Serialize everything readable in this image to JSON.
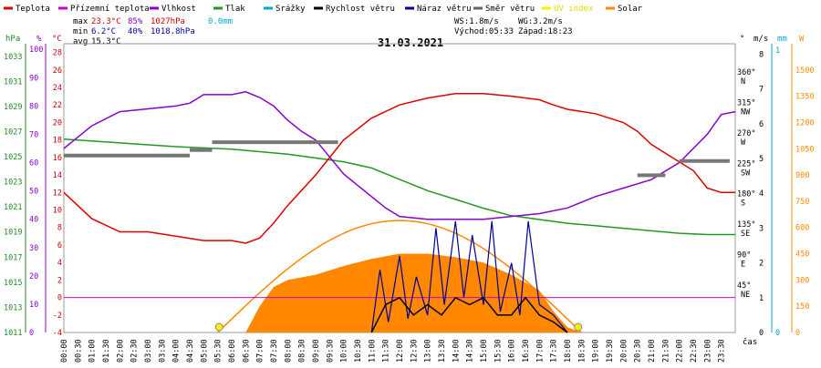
{
  "chart_data": {
    "type": "line",
    "title": "31.03.2021",
    "legend": [
      {
        "name": "Teplota",
        "color": "#dd0000"
      },
      {
        "name": "Přízemní teplota",
        "color": "#cc00cc"
      },
      {
        "name": "Vlhkost",
        "color": "#8800cc"
      },
      {
        "name": "Tlak",
        "color": "#229922"
      },
      {
        "name": "Srážky",
        "color": "#00aacc"
      },
      {
        "name": "Rychlost větru",
        "color": "#000000"
      },
      {
        "name": "Náraz větru",
        "color": "#000099"
      },
      {
        "name": "Směr větru",
        "color": "#666666"
      },
      {
        "name": "UV index",
        "color": "#ffee00"
      },
      {
        "name": "Solar",
        "color": "#ff8800"
      }
    ],
    "stats": {
      "max_label": "max",
      "max_temp": "23.3°C",
      "max_hum": "85%",
      "max_press": "1027hPa",
      "max_rain": "0.0mm",
      "min_label": "min",
      "min_temp": "6.2°C",
      "min_hum": "40%",
      "min_press": "1018.8hPa",
      "avg_label": "avg",
      "avg_temp": "15.3°C",
      "ws": "WS:1.8m/s",
      "wg": "WG:3.2m/s",
      "sunrise": "Východ:05:33",
      "sunset": "Západ:18:23"
    },
    "axes": {
      "hpa_unit": "hPa",
      "pct_unit": "%",
      "c_unit": "°C",
      "ms_unit": "m/s",
      "dir_unit": "°",
      "mm_unit": "mm",
      "w_unit": "W",
      "time_label": "čas",
      "hpa_ticks": [
        "1033",
        "1031",
        "1029",
        "1027",
        "1025",
        "1023",
        "1021",
        "1019",
        "1017",
        "1015",
        "1013",
        "1011"
      ],
      "pct_ticks": [
        "100",
        "90",
        "80",
        "70",
        "60",
        "50",
        "40",
        "30",
        "20",
        "10",
        "0"
      ],
      "c_ticks": [
        "28",
        "26",
        "24",
        "22",
        "20",
        "18",
        "16",
        "14",
        "12",
        "10",
        "8",
        "6",
        "4",
        "2",
        "0",
        "-2",
        "-4"
      ],
      "ms_ticks": [
        "8",
        "7",
        "6",
        "5",
        "4",
        "3",
        "2",
        "1",
        "0"
      ],
      "dir_ticks": [
        "360°",
        "315°",
        "270°",
        "225°",
        "180°",
        "135°",
        "90°",
        "45°"
      ],
      "dir_names": [
        "N",
        "NW",
        "W",
        "SW",
        "S",
        "SE",
        "E",
        "NE"
      ],
      "mm_ticks": [
        "1",
        "0"
      ],
      "w_ticks": [
        "1500",
        "1350",
        "1200",
        "1050",
        "900",
        "750",
        "600",
        "450",
        "300",
        "150",
        "0"
      ],
      "time_ticks": [
        "00:00",
        "00:30",
        "01:00",
        "01:30",
        "02:00",
        "02:30",
        "03:00",
        "03:30",
        "04:00",
        "04:30",
        "05:00",
        "05:30",
        "06:00",
        "06:30",
        "07:00",
        "07:30",
        "08:00",
        "08:30",
        "09:00",
        "09:30",
        "10:00",
        "10:30",
        "11:00",
        "11:30",
        "12:00",
        "12:30",
        "13:00",
        "13:30",
        "14:00",
        "14:30",
        "15:00",
        "15:30",
        "16:00",
        "16:30",
        "17:00",
        "17:30",
        "18:00",
        "18:30",
        "19:00",
        "19:30",
        "20:00",
        "20:30",
        "21:00",
        "21:30",
        "22:00",
        "22:30",
        "23:00",
        "23:30"
      ],
      "ylim_temp": [
        -4,
        29
      ],
      "ylim_solar": [
        0,
        1650
      ]
    },
    "series": [
      {
        "name": "Teplota",
        "color": "#dd0000",
        "x_hours": [
          0,
          0.5,
          1,
          2,
          3,
          4,
          5,
          6,
          6.5,
          7,
          7.5,
          8,
          9,
          10,
          11,
          12,
          13,
          14,
          15,
          16,
          17,
          17.5,
          18,
          19,
          20,
          20.5,
          21,
          21.5,
          22,
          22.5,
          23,
          23.5,
          24
        ],
        "values": [
          12,
          10.5,
          9,
          7.5,
          7.5,
          7,
          6.5,
          6.5,
          6.2,
          6.8,
          8.5,
          10.5,
          14,
          18,
          20.5,
          22,
          22.8,
          23.3,
          23.3,
          23,
          22.6,
          22,
          21.5,
          21,
          20,
          19,
          17.5,
          16.5,
          15.5,
          14.5,
          12.5,
          12,
          12
        ]
      },
      {
        "name": "Vlhkost",
        "color": "#8800cc",
        "x_hours": [
          0,
          1,
          2,
          3,
          4,
          4.5,
          5,
          6,
          6.5,
          7,
          7.5,
          8,
          8.5,
          9,
          9.5,
          10,
          10.5,
          11,
          11.5,
          12,
          13,
          14,
          15,
          16,
          17,
          18,
          19,
          20,
          21,
          22,
          22.5,
          23,
          23.5,
          24
        ],
        "values": [
          65,
          73,
          78,
          79,
          80,
          81,
          84,
          84,
          85,
          83,
          80,
          75,
          71,
          68,
          62,
          56,
          52,
          48,
          44,
          41,
          40,
          40,
          40,
          41,
          42,
          44,
          48,
          51,
          54,
          60,
          65,
          70,
          77,
          78
        ]
      },
      {
        "name": "Tlak",
        "color": "#229922",
        "x_hours": [
          0,
          2,
          4,
          6,
          8,
          10,
          11,
          12,
          13,
          14,
          15,
          16,
          17,
          18,
          19,
          20,
          21,
          22,
          23,
          24
        ],
        "values": [
          1026.4,
          1026.1,
          1025.8,
          1025.6,
          1025.2,
          1024.6,
          1024.1,
          1023.2,
          1022.3,
          1021.6,
          1020.9,
          1020.3,
          1020.0,
          1019.7,
          1019.5,
          1019.3,
          1019.1,
          1018.9,
          1018.8,
          1018.8
        ]
      },
      {
        "name": "Solar",
        "color": "#ff8800",
        "x_hours": [
          6.5,
          7,
          7.5,
          8,
          9,
          10,
          11,
          12,
          13,
          14,
          15,
          16,
          17,
          17.5,
          18,
          18.5
        ],
        "values": [
          0,
          150,
          260,
          300,
          330,
          380,
          420,
          450,
          450,
          430,
          400,
          330,
          240,
          120,
          30,
          0
        ]
      },
      {
        "name": "Rychlost větru",
        "color": "#000000",
        "x_hours": [
          11,
          11.5,
          12,
          12.5,
          13,
          13.5,
          14,
          14.5,
          15,
          15.5,
          16,
          16.5,
          17,
          17.5,
          18
        ],
        "values": [
          0,
          0.8,
          1,
          0.5,
          0.8,
          0.5,
          1,
          0.8,
          1,
          0.5,
          0.5,
          1,
          0.5,
          0.3,
          0
        ]
      },
      {
        "name": "Náraz větru",
        "color": "#000099",
        "x_hours": [
          11,
          11.3,
          11.6,
          12,
          12.3,
          12.6,
          13,
          13.3,
          13.6,
          14,
          14.3,
          14.6,
          15,
          15.3,
          15.6,
          16,
          16.3,
          16.6,
          17,
          17.5,
          18
        ],
        "values": [
          0,
          1.8,
          0.3,
          2.2,
          0.4,
          1.6,
          0.5,
          3,
          0.8,
          3.2,
          1,
          2.8,
          0.8,
          3.2,
          0.6,
          2,
          0.5,
          3.2,
          0.8,
          0.5,
          0
        ]
      }
    ]
  }
}
